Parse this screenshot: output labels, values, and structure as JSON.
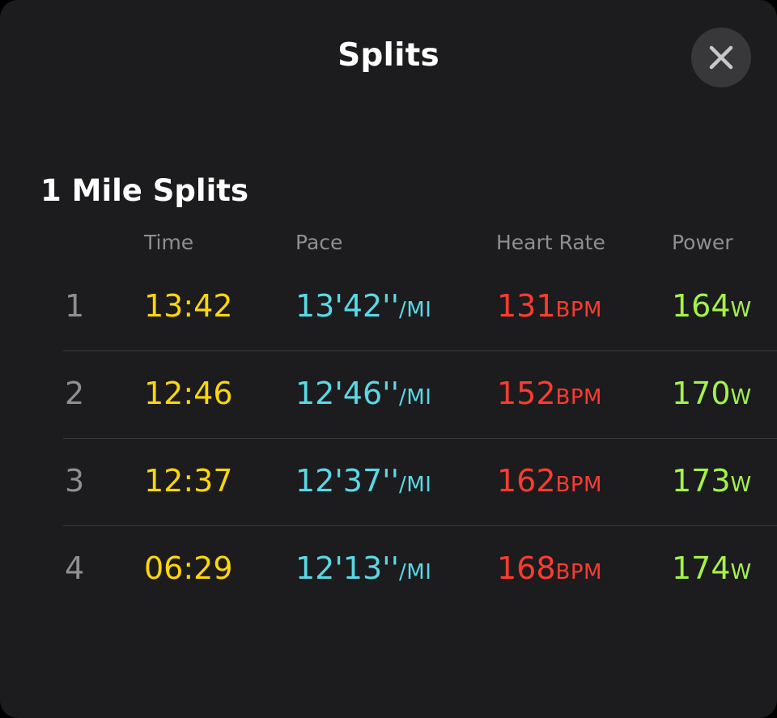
{
  "header": {
    "title": "Splits",
    "close_icon": "close-icon"
  },
  "section": {
    "title": "1 Mile Splits"
  },
  "columns": {
    "time": "Time",
    "pace": "Pace",
    "heart_rate": "Heart Rate",
    "power": "Power"
  },
  "units": {
    "pace": "/MI",
    "heart_rate": "BPM",
    "power": "W"
  },
  "colors": {
    "time": "#ffd60a",
    "pace": "#5ad8e6",
    "heart_rate": "#ff3b30",
    "power": "#a4f24a"
  },
  "splits": [
    {
      "index": "1",
      "time": "13:42",
      "pace": "13'42''",
      "heart_rate": "131",
      "power": "164"
    },
    {
      "index": "2",
      "time": "12:46",
      "pace": "12'46''",
      "heart_rate": "152",
      "power": "170"
    },
    {
      "index": "3",
      "time": "12:37",
      "pace": "12'37''",
      "heart_rate": "162",
      "power": "173"
    },
    {
      "index": "4",
      "time": "06:29",
      "pace": "12'13''",
      "heart_rate": "168",
      "power": "174"
    }
  ]
}
